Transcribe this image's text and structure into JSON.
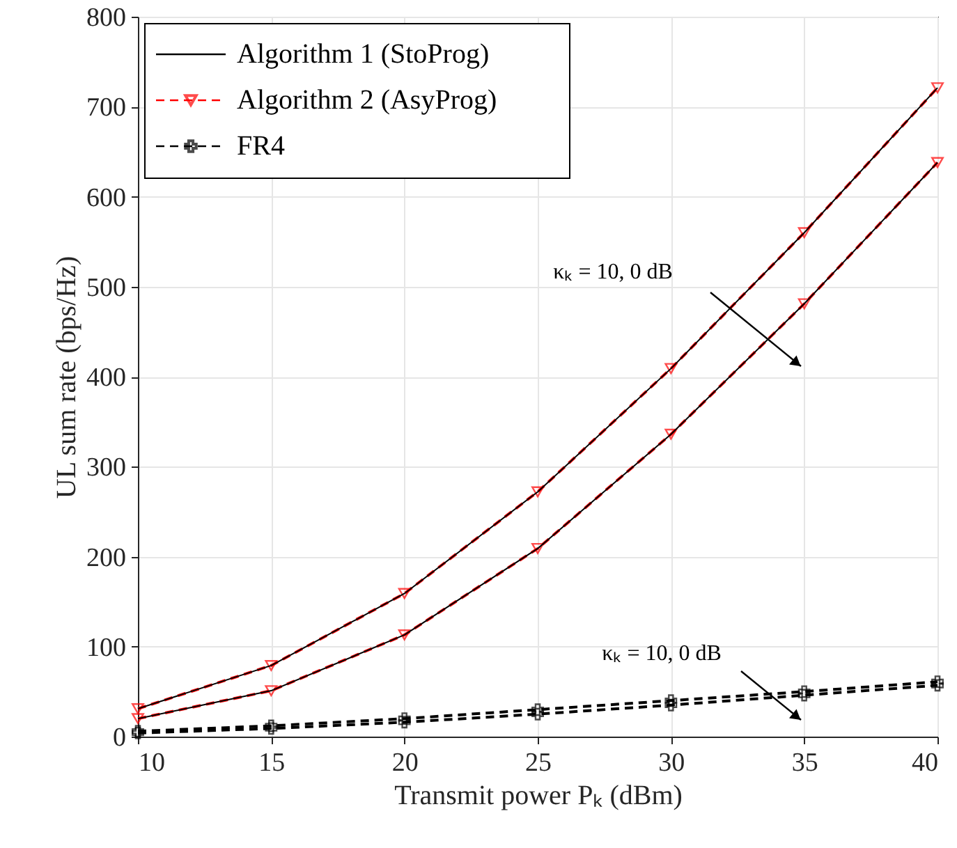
{
  "chart_data": {
    "type": "line",
    "xlabel": "Transmit power Pₖ (dBm)",
    "ylabel": "UL sum rate (bps/Hz)",
    "x": [
      10,
      15,
      20,
      25,
      30,
      35,
      40
    ],
    "series": [
      {
        "name": "Algorithm 1 (StoProg)",
        "color": "#000000",
        "marker": "none",
        "line_style": "solid",
        "values": [
          31,
          79,
          159,
          272,
          409,
          560,
          721
        ]
      },
      {
        "color": "#000000",
        "marker": "none",
        "line_style": "solid",
        "values": [
          20,
          51,
          113,
          209,
          336,
          481,
          638
        ]
      },
      {
        "name": "Algorithm 2 (AsyProg)",
        "color": "#ff0000",
        "marker": "triangle",
        "line_style": "dashed",
        "values": [
          31,
          79,
          159,
          272,
          409,
          560,
          721
        ]
      },
      {
        "color": "#ff0000",
        "marker": "triangle",
        "line_style": "dashed",
        "values": [
          20,
          51,
          113,
          209,
          336,
          481,
          638
        ]
      },
      {
        "name": "FR4",
        "color": "#000000",
        "marker": "cross",
        "line_style": "dashed",
        "values": [
          6,
          12,
          20,
          30,
          40,
          50,
          61
        ]
      },
      {
        "color": "#000000",
        "marker": "cross",
        "line_style": "dashed",
        "values": [
          4,
          9,
          16,
          25,
          35,
          46,
          57
        ]
      }
    ],
    "annotations": [
      "κₖ = 10, 0 dB",
      "κₖ = 10, 0 dB"
    ],
    "xlim": [
      10,
      40
    ],
    "ylim": [
      0,
      800
    ],
    "xticks": [
      10,
      15,
      20,
      25,
      30,
      35,
      40
    ],
    "yticks": [
      0,
      100,
      200,
      300,
      400,
      500,
      600,
      700,
      800
    ],
    "grid": true,
    "legend": "top left"
  }
}
